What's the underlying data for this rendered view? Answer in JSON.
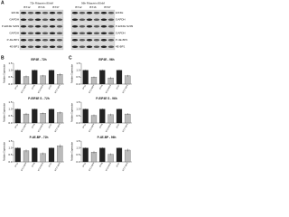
{
  "panel_label": "A",
  "blots": [
    {
      "header": "72h Ribavirin 80nM",
      "lanes": [
        "BT12",
        "BT16",
        "BT37"
      ],
      "rows": [
        "EIF4E",
        "GAPDH",
        "P-EIF4E S209",
        "GAPDH",
        "P-4E-BP1",
        "4E-BP1"
      ]
    },
    {
      "header": "96h Ribavirin 80nM",
      "lanes": [
        "BT12",
        "BT16",
        "BT37"
      ],
      "rows": [
        "EIF4E",
        "GAPDH",
        "P-EIF4E S209",
        "GAPDH",
        "P-4E-BP1",
        "4E-BP1"
      ]
    }
  ],
  "chart_data": [
    {
      "type": "bar",
      "panel": "B",
      "title": "EIF4E - 72h",
      "y_label": "Relative Expression",
      "categories": [
        "BT12",
        "BT12 RBV",
        "BT16",
        "BT16 RBV",
        "BT37",
        "BT37 RBV"
      ],
      "values": [
        1,
        0.55,
        1,
        0.6,
        1,
        0.7
      ],
      "errors": [
        0.05,
        0.08,
        0.05,
        0.07,
        0.05,
        0.09
      ],
      "colors": [
        "#222222",
        "#bbbbbb",
        "#222222",
        "#bbbbbb",
        "#222222",
        "#bbbbbb"
      ],
      "ylim": [
        0,
        1.5
      ],
      "yticks": [
        {
          "value": 0,
          "label": "0.0"
        },
        0.5,
        {
          "value": 1,
          "label": "1.0"
        },
        1.5
      ]
    },
    {
      "type": "bar",
      "panel": "C",
      "title": "EIF4E - 96h",
      "y_label": "Relative Expression",
      "categories": [
        "BT12",
        "BT12 RBV",
        "BT16",
        "BT16 RBV",
        "BT37",
        "BT37 RBV"
      ],
      "values": [
        1,
        0.5,
        1,
        0.45,
        1,
        0.6
      ],
      "errors": [
        0.05,
        0.06,
        0.05,
        0.08,
        0.05,
        0.07
      ],
      "colors": [
        "#222222",
        "#bbbbbb",
        "#222222",
        "#bbbbbb",
        "#222222",
        "#bbbbbb"
      ],
      "ylim": [
        0,
        1.5
      ],
      "yticks": [
        {
          "value": 0,
          "label": "0.0"
        },
        0.5,
        {
          "value": 1,
          "label": "1.0"
        },
        1.5
      ]
    },
    {
      "type": "bar",
      "title": "P-EIF4E S - 72h",
      "y_label": "Relative Expression",
      "categories": [
        "BT12",
        "BT12 RBV",
        "BT16",
        "BT16 RBV",
        "BT37",
        "BT37 RBV"
      ],
      "values": [
        1,
        0.65,
        1,
        0.7,
        1,
        0.75
      ],
      "errors": [
        0.05,
        0.08,
        0.05,
        0.06,
        0.05,
        0.08
      ],
      "colors": [
        "#222222",
        "#bbbbbb",
        "#222222",
        "#bbbbbb",
        "#222222",
        "#bbbbbb"
      ],
      "ylim": [
        0,
        1.5
      ],
      "yticks": [
        {
          "value": 0,
          "label": "0.0"
        },
        0.5,
        {
          "value": 1,
          "label": "1.0"
        },
        1.5
      ]
    },
    {
      "type": "bar",
      "title": "P-EIF4E S - 96h",
      "y_label": "Relative Expression",
      "categories": [
        "BT12",
        "BT12 RBV",
        "BT16",
        "BT16 RBV",
        "BT37",
        "BT37 RBV"
      ],
      "values": [
        1,
        0.55,
        1,
        0.6,
        1,
        0.65
      ],
      "errors": [
        0.05,
        0.07,
        0.05,
        0.08,
        0.05,
        0.06
      ],
      "colors": [
        "#222222",
        "#bbbbbb",
        "#222222",
        "#bbbbbb",
        "#222222",
        "#bbbbbb"
      ],
      "ylim": [
        0,
        1.5
      ],
      "yticks": [
        {
          "value": 0,
          "label": "0.0"
        },
        0.5,
        {
          "value": 1,
          "label": "1.0"
        },
        1.5
      ]
    },
    {
      "type": "bar",
      "title": "P-4E-BP - 72h",
      "y_label": "Relative Expression",
      "categories": [
        "BT12",
        "BT12 RBV",
        "BT16",
        "BT16 RBV",
        "BT37",
        "BT37 RBV"
      ],
      "values": [
        1,
        0.8,
        1,
        0.6,
        1,
        1.15
      ],
      "errors": [
        0.05,
        0.1,
        0.05,
        0.08,
        0.05,
        0.12
      ],
      "colors": [
        "#222222",
        "#bbbbbb",
        "#222222",
        "#bbbbbb",
        "#222222",
        "#bbbbbb"
      ],
      "ylim": [
        0,
        1.5
      ],
      "yticks": [
        {
          "value": 0,
          "label": "0.0"
        },
        0.5,
        {
          "value": 1,
          "label": "1.0"
        },
        1.5
      ]
    },
    {
      "type": "bar",
      "title": "P-4E-BP - 96h",
      "y_label": "Relative Expression",
      "categories": [
        "BT12",
        "BT12 RBV",
        "BT16",
        "BT16 RBV",
        "BT37",
        "BT37 RBV"
      ],
      "values": [
        1,
        0.7,
        1,
        0.55,
        1,
        0.85
      ],
      "errors": [
        0.05,
        0.09,
        0.05,
        0.07,
        0.05,
        0.1
      ],
      "colors": [
        "#222222",
        "#bbbbbb",
        "#222222",
        "#bbbbbb",
        "#222222",
        "#bbbbbb"
      ],
      "ylim": [
        0,
        1.5
      ],
      "yticks": [
        {
          "value": 0,
          "label": "0.0"
        },
        0.5,
        {
          "value": 1,
          "label": "1.0"
        },
        1.5
      ]
    }
  ]
}
